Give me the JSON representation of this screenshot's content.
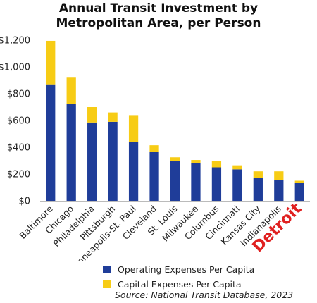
{
  "chart_data": {
    "type": "bar",
    "stacked": true,
    "title_lines": [
      "Annual Transit Investment by",
      "Metropolitan Area, per Person"
    ],
    "categories": [
      "Baltimore",
      "Chicago",
      "Philadelphia",
      "Pittsburgh",
      "Minneapolis-St. Paul",
      "Cleveland",
      "St. Louis",
      "Milwaukee",
      "Columbus",
      "Cincinnati",
      "Kansas City",
      "Indianapolis",
      "Detroit"
    ],
    "highlight_category": "Detroit",
    "series": [
      {
        "name": "Operating Expenses Per Capita",
        "color": "#1f3d99",
        "values": [
          870,
          725,
          585,
          590,
          440,
          365,
          300,
          280,
          250,
          235,
          170,
          155,
          135
        ]
      },
      {
        "name": "Capital Expenses Per Capita",
        "color": "#f7cc15",
        "values": [
          325,
          200,
          115,
          70,
          200,
          50,
          25,
          25,
          50,
          30,
          50,
          65,
          15
        ]
      }
    ],
    "ylim": [
      0,
      1200
    ],
    "yticks": [
      0,
      200,
      400,
      600,
      800,
      1000,
      1200
    ],
    "ytick_labels": [
      "$0",
      "$200",
      "$400",
      "$600",
      "$800",
      "$1,000",
      "$1,200"
    ],
    "grid": false,
    "legend_position": "bottom",
    "highlight_color": "#e02020",
    "source": "Source: National Transit Database, 2023"
  }
}
